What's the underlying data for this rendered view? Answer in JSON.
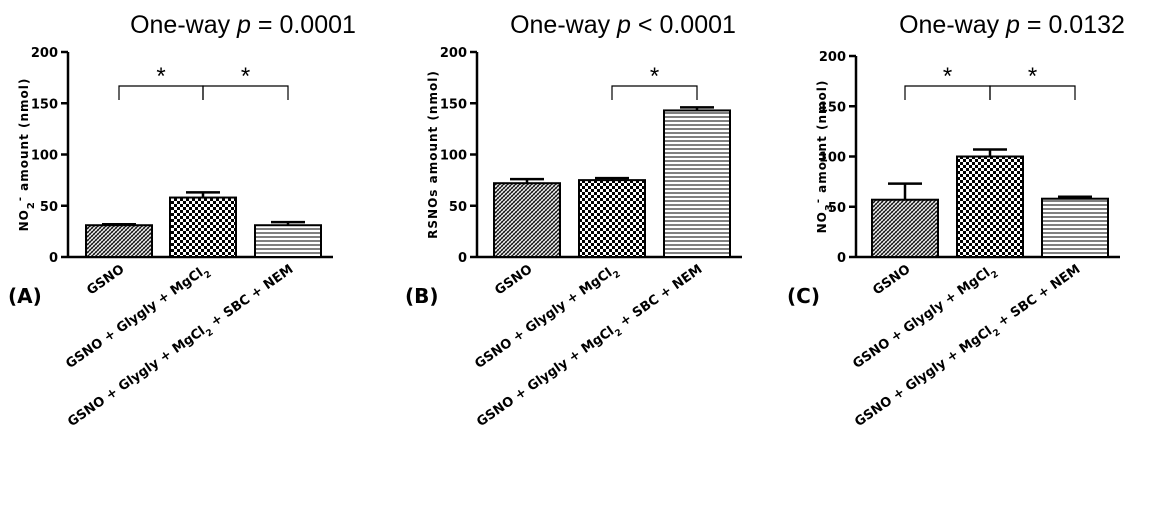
{
  "figure": {
    "panels": [
      {
        "panel_label": "(A)",
        "title_prefix": "One-way ",
        "title_p": "p",
        "title_suffix": " = 0.0001",
        "ylabel_main": "NO",
        "ylabel_sub": "2",
        "ylabel_sup": "-",
        "ylabel_rest": " amount (nmol)",
        "yticks": [
          "0",
          "50",
          "100",
          "150",
          "200"
        ],
        "significance": [
          {
            "from": 0,
            "to": 1,
            "label": "*"
          },
          {
            "from": 1,
            "to": 2,
            "label": "*"
          }
        ]
      },
      {
        "panel_label": "(B)",
        "title_prefix": "One-way ",
        "title_p": "p",
        "title_suffix": " < 0.0001",
        "ylabel_main": "RSNOs amount (nmol)",
        "ylabel_sub": "",
        "ylabel_sup": "",
        "ylabel_rest": "",
        "yticks": [
          "0",
          "50",
          "100",
          "150",
          "200"
        ],
        "significance": [
          {
            "from": 1,
            "to": 2,
            "label": "*"
          }
        ]
      },
      {
        "panel_label": "(C)",
        "title_prefix": "One-way ",
        "title_p": "p",
        "title_suffix": " = 0.0132",
        "ylabel_main": "NO",
        "ylabel_sub": "3",
        "ylabel_sup": "-",
        "ylabel_rest": " amount (nmol)",
        "yticks": [
          "0",
          "50",
          "100",
          "150",
          "200"
        ],
        "significance": [
          {
            "from": 0,
            "to": 1,
            "label": "*"
          },
          {
            "from": 1,
            "to": 2,
            "label": "*"
          }
        ]
      }
    ],
    "category_labels": [
      {
        "text": "GSNO",
        "sub": ""
      },
      {
        "text": "GSNO + Glygly + MgCl",
        "sub": "2"
      },
      {
        "text": "GSNO + Glygly + MgCl",
        "sub": "2",
        "tail": " + SBC + NEM"
      }
    ]
  },
  "chart_data": [
    {
      "type": "bar",
      "title": "One-way p = 0.0001",
      "categories": [
        "GSNO",
        "GSNO + Glygly + MgCl2",
        "GSNO + Glygly + MgCl2 + SBC + NEM"
      ],
      "values": [
        31,
        58,
        31
      ],
      "errors": [
        1,
        5,
        3
      ],
      "patterns": [
        "hatch",
        "checker",
        "hlines"
      ],
      "xlabel": "",
      "ylabel": "NO2- amount (nmol)",
      "ylim": [
        0,
        200
      ]
    },
    {
      "type": "bar",
      "title": "One-way p < 0.0001",
      "categories": [
        "GSNO",
        "GSNO + Glygly + MgCl2",
        "GSNO + Glygly + MgCl2 + SBC + NEM"
      ],
      "values": [
        72,
        75,
        143
      ],
      "errors": [
        4,
        2,
        3
      ],
      "patterns": [
        "hatch",
        "checker",
        "hlines"
      ],
      "xlabel": "",
      "ylabel": "RSNOs amount (nmol)",
      "ylim": [
        0,
        200
      ]
    },
    {
      "type": "bar",
      "title": "One-way p = 0.0132",
      "categories": [
        "GSNO",
        "GSNO + Glygly + MgCl2",
        "GSNO + Glygly + MgCl2 + SBC + NEM"
      ],
      "values": [
        57,
        100,
        58
      ],
      "errors": [
        16,
        7,
        2
      ],
      "patterns": [
        "hatch",
        "checker",
        "hlines"
      ],
      "xlabel": "",
      "ylabel": "NO3- amount (nmol)",
      "ylim": [
        0,
        200
      ]
    }
  ]
}
